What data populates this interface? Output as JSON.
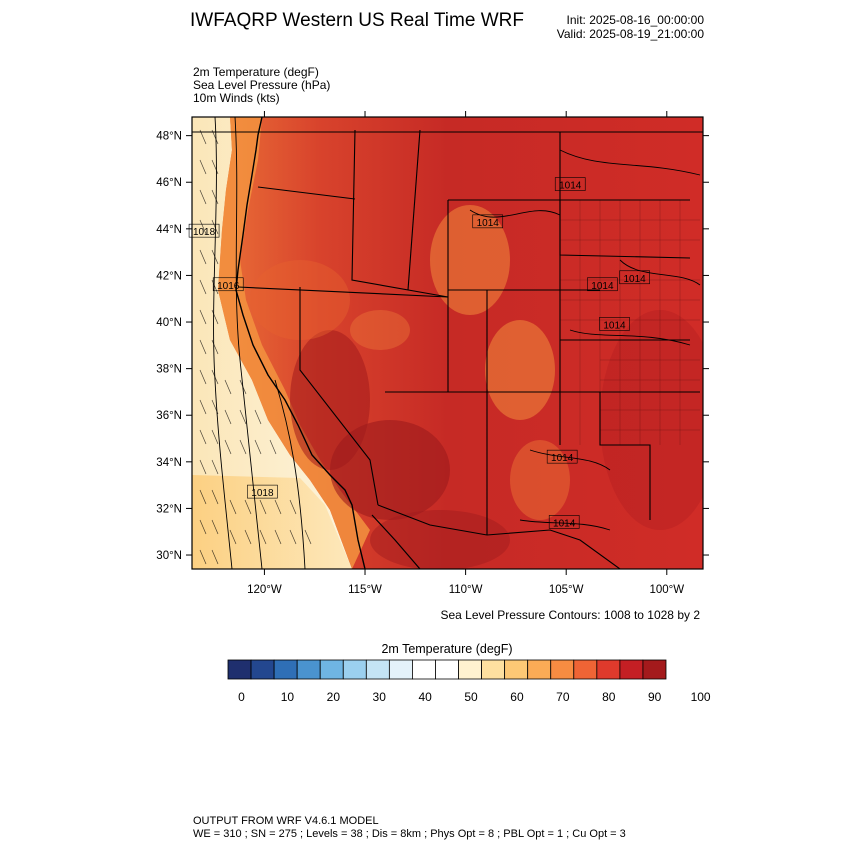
{
  "header": {
    "title": "IWFAQRP Western US Real Time WRF",
    "init": "Init: 2025-08-16_00:00:00",
    "valid": "Valid: 2025-08-19_21:00:00"
  },
  "fields": [
    "2m Temperature   (degF)",
    "Sea Level Pressure   (hPa)",
    "10m Winds   (kts)"
  ],
  "axes": {
    "lat_labels": [
      "48°N",
      "46°N",
      "44°N",
      "42°N",
      "40°N",
      "38°N",
      "36°N",
      "34°N",
      "32°N",
      "30°N"
    ],
    "lat_values": [
      48,
      46,
      44,
      42,
      40,
      38,
      36,
      34,
      32,
      30
    ],
    "lon_labels": [
      "120°W",
      "115°W",
      "110°W",
      "105°W",
      "100°W"
    ],
    "lon_values": [
      -120,
      -115,
      -110,
      -105,
      -100
    ],
    "lat_range": [
      29.4,
      48.8
    ],
    "lon_range": [
      -123.6,
      -98.2
    ]
  },
  "isobar_labels": [
    {
      "text": "1018",
      "lat": 32.7,
      "lon": -120.1
    },
    {
      "text": "1018",
      "lat": 43.9,
      "lon": -123.0
    },
    {
      "text": "1016",
      "lat": 41.6,
      "lon": -121.8
    },
    {
      "text": "1014",
      "lat": 45.9,
      "lon": -104.8
    },
    {
      "text": "1014",
      "lat": 44.3,
      "lon": -108.9
    },
    {
      "text": "1014",
      "lat": 41.9,
      "lon": -101.6
    },
    {
      "text": "1014",
      "lat": 41.6,
      "lon": -103.2
    },
    {
      "text": "1014",
      "lat": 39.9,
      "lon": -102.6
    },
    {
      "text": "1014",
      "lat": 34.2,
      "lon": -105.2
    },
    {
      "text": "1014",
      "lat": 31.4,
      "lon": -105.1
    }
  ],
  "slp_note": "Sea Level Pressure Contours: 1008 to 1028 by 2",
  "colorbar": {
    "title": "2m Temperature  (degF)",
    "colors": [
      "#1f2f6e",
      "#23478f",
      "#2f6fb6",
      "#4a93cf",
      "#6fb5e3",
      "#9bd0ef",
      "#c4e4f5",
      "#e4f2fa",
      "#ffffff",
      "#ffffff",
      "#fff2d0",
      "#fee0a0",
      "#fdc875",
      "#fbab56",
      "#f78c42",
      "#ef6435",
      "#df3a2c",
      "#c41f24",
      "#a41a1c"
    ],
    "tick_labels": [
      "0",
      "10",
      "20",
      "30",
      "40",
      "50",
      "60",
      "70",
      "80",
      "90",
      "100"
    ]
  },
  "footer": {
    "line1": "OUTPUT FROM WRF V4.6.1 MODEL",
    "line2": "WE = 310 ; SN = 275 ; Levels = 38 ; Dis = 8km ; Phys Opt = 8 ; PBL Opt = 1 ; Cu Opt = 3"
  }
}
